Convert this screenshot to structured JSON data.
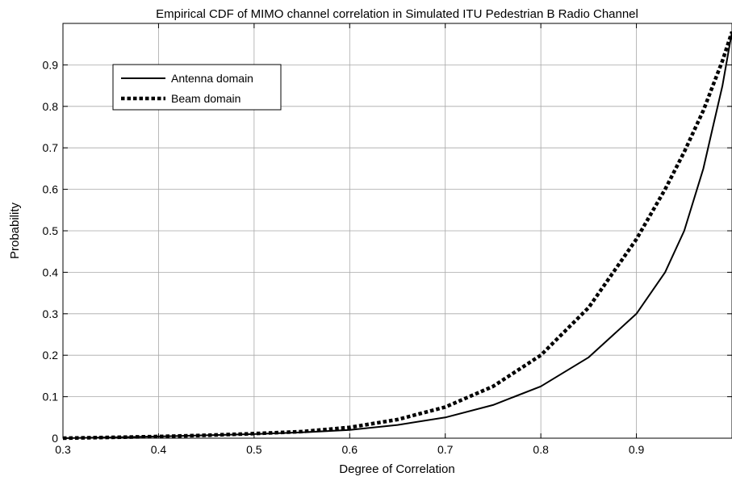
{
  "chart_data": {
    "type": "line",
    "title": "Empirical CDF of MIMO channel correlation in Simulated ITU Pedestrian B Radio Channel",
    "xlabel": "Degree of Correlation",
    "ylabel": "Probability",
    "xlim": [
      0.3,
      1.0
    ],
    "ylim": [
      0,
      1.0
    ],
    "grid": true,
    "legend_position": "top-left",
    "x_ticks": [
      {
        "value": 0.3,
        "label": "0.3"
      },
      {
        "value": 0.4,
        "label": "0.4"
      },
      {
        "value": 0.5,
        "label": "0.5"
      },
      {
        "value": 0.6,
        "label": "0.6"
      },
      {
        "value": 0.7,
        "label": "0.7"
      },
      {
        "value": 0.8,
        "label": "0.8"
      },
      {
        "value": 0.9,
        "label": "0.9"
      }
    ],
    "y_ticks": [
      {
        "value": 0,
        "label": "0"
      },
      {
        "value": 0.1,
        "label": "0.1"
      },
      {
        "value": 0.2,
        "label": "0.2"
      },
      {
        "value": 0.3,
        "label": "0.3"
      },
      {
        "value": 0.4,
        "label": "0.4"
      },
      {
        "value": 0.5,
        "label": "0.5"
      },
      {
        "value": 0.6,
        "label": "0.6"
      },
      {
        "value": 0.7,
        "label": "0.7"
      },
      {
        "value": 0.8,
        "label": "0.8"
      },
      {
        "value": 0.9,
        "label": "0.9"
      }
    ],
    "series": [
      {
        "name": "Antenna domain",
        "style": "solid",
        "color": "#000000",
        "x": [
          0.3,
          0.35,
          0.4,
          0.45,
          0.5,
          0.55,
          0.6,
          0.65,
          0.7,
          0.75,
          0.8,
          0.85,
          0.9,
          0.93,
          0.95,
          0.97,
          0.98,
          0.99,
          1.0
        ],
        "y": [
          0.0,
          0.002,
          0.004,
          0.007,
          0.01,
          0.014,
          0.02,
          0.032,
          0.05,
          0.08,
          0.125,
          0.195,
          0.3,
          0.4,
          0.5,
          0.65,
          0.75,
          0.85,
          0.98
        ]
      },
      {
        "name": "Beam domain",
        "style": "dotted",
        "color": "#000000",
        "x": [
          0.3,
          0.35,
          0.4,
          0.45,
          0.5,
          0.55,
          0.6,
          0.65,
          0.7,
          0.75,
          0.8,
          0.85,
          0.9,
          0.93,
          0.95,
          0.97,
          0.98,
          0.99,
          1.0
        ],
        "y": [
          0.0,
          0.002,
          0.004,
          0.007,
          0.011,
          0.016,
          0.026,
          0.045,
          0.075,
          0.125,
          0.2,
          0.315,
          0.48,
          0.6,
          0.69,
          0.79,
          0.85,
          0.91,
          0.98
        ]
      }
    ]
  }
}
